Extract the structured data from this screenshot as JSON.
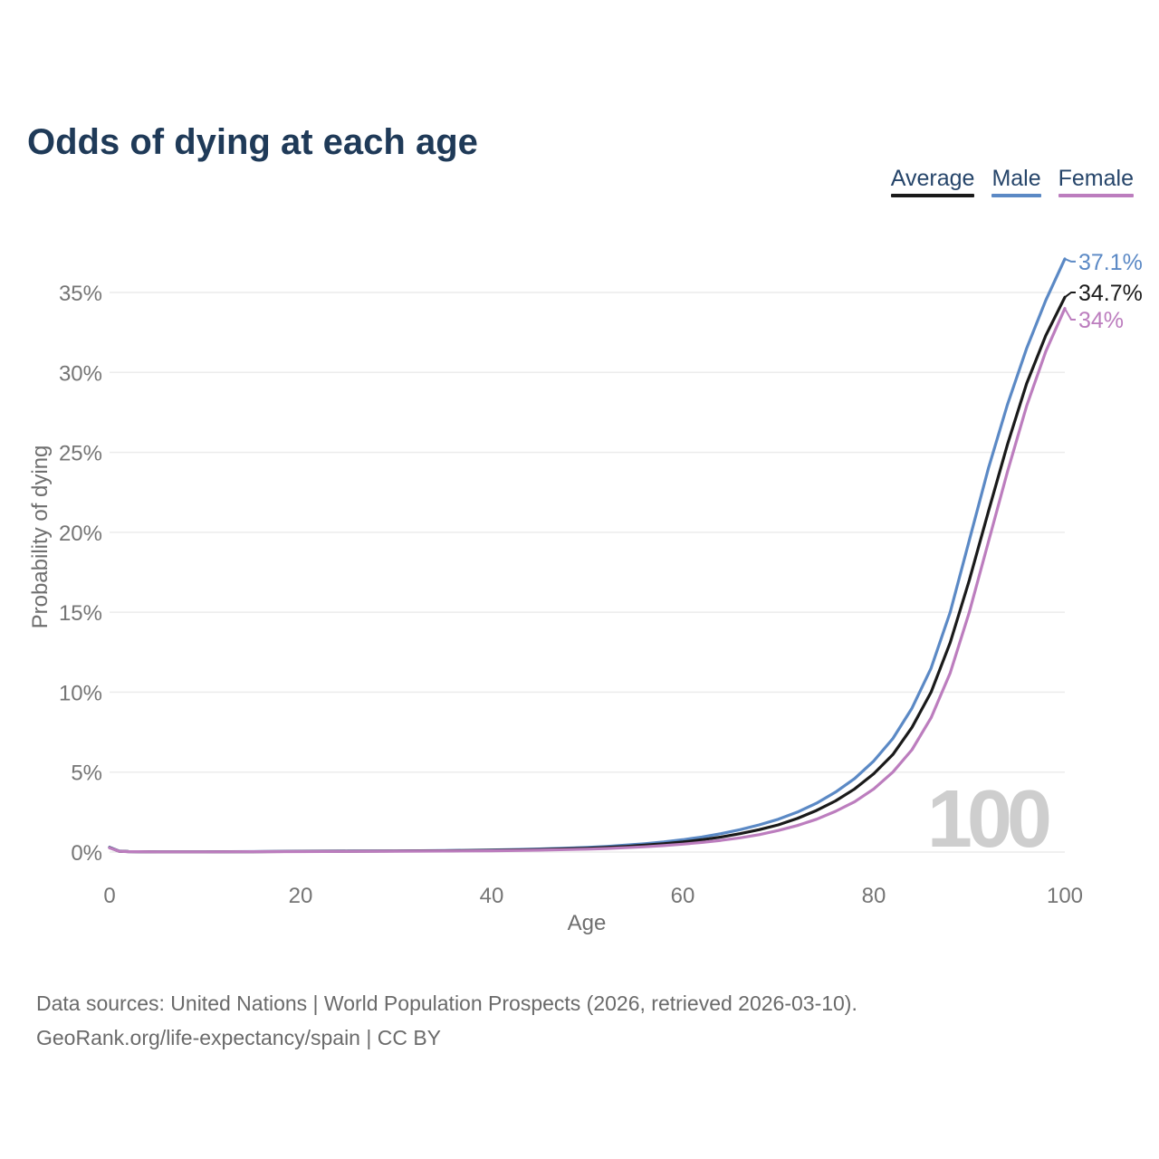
{
  "page": {
    "title": "Odds of dying at each age",
    "footer_line1": "Data sources: United Nations | World Population Prospects (2026, retrieved 2026-03-10).",
    "footer_line2": "GeoRank.org/life-expectancy/spain | CC BY"
  },
  "legend": {
    "items": [
      {
        "label": "Average",
        "color": "#1a1a1a"
      },
      {
        "label": "Male",
        "color": "#5b89c5"
      },
      {
        "label": "Female",
        "color": "#bc7dbe"
      }
    ]
  },
  "chart_data": {
    "type": "line",
    "title": "Odds of dying at each age",
    "xlabel": "Age",
    "ylabel": "Probability of dying",
    "xlim": [
      0,
      100
    ],
    "ylim": [
      0,
      35
    ],
    "grid": "horizontal",
    "legend_position": "top-right",
    "watermark": "100",
    "x_ticks": [
      {
        "v": 0,
        "label": "0"
      },
      {
        "v": 20,
        "label": "20"
      },
      {
        "v": 40,
        "label": "40"
      },
      {
        "v": 60,
        "label": "60"
      },
      {
        "v": 80,
        "label": "80"
      },
      {
        "v": 100,
        "label": "100"
      }
    ],
    "y_ticks": [
      {
        "v": 0,
        "label": "0%"
      },
      {
        "v": 5,
        "label": "5%"
      },
      {
        "v": 10,
        "label": "10%"
      },
      {
        "v": 15,
        "label": "15%"
      },
      {
        "v": 20,
        "label": "20%"
      },
      {
        "v": 25,
        "label": "25%"
      },
      {
        "v": 30,
        "label": "30%"
      },
      {
        "v": 35,
        "label": "35%"
      }
    ],
    "series": [
      {
        "name": "Male",
        "color": "#5b89c5",
        "end_label": "37.1%",
        "end_value": 37.1,
        "label_y_value": 36.93,
        "points": [
          [
            0,
            0.3
          ],
          [
            1,
            0.06
          ],
          [
            2,
            0.03
          ],
          [
            3,
            0.02
          ],
          [
            5,
            0.01
          ],
          [
            10,
            0.01
          ],
          [
            15,
            0.03
          ],
          [
            20,
            0.05
          ],
          [
            25,
            0.06
          ],
          [
            30,
            0.07
          ],
          [
            35,
            0.09
          ],
          [
            40,
            0.13
          ],
          [
            45,
            0.19
          ],
          [
            50,
            0.29
          ],
          [
            52,
            0.35
          ],
          [
            54,
            0.43
          ],
          [
            56,
            0.52
          ],
          [
            58,
            0.63
          ],
          [
            60,
            0.77
          ],
          [
            62,
            0.94
          ],
          [
            64,
            1.15
          ],
          [
            66,
            1.4
          ],
          [
            68,
            1.7
          ],
          [
            70,
            2.05
          ],
          [
            72,
            2.5
          ],
          [
            74,
            3.05
          ],
          [
            76,
            3.75
          ],
          [
            78,
            4.6
          ],
          [
            80,
            5.7
          ],
          [
            82,
            7.1
          ],
          [
            84,
            9.0
          ],
          [
            86,
            11.5
          ],
          [
            88,
            15.0
          ],
          [
            90,
            19.5
          ],
          [
            92,
            24.0
          ],
          [
            94,
            28.0
          ],
          [
            96,
            31.5
          ],
          [
            98,
            34.5
          ],
          [
            100,
            37.1
          ]
        ]
      },
      {
        "name": "Average",
        "color": "#1a1a1a",
        "end_label": "34.7%",
        "end_value": 34.7,
        "label_y_value": 35.0,
        "points": [
          [
            0,
            0.28
          ],
          [
            1,
            0.05
          ],
          [
            2,
            0.03
          ],
          [
            3,
            0.02
          ],
          [
            5,
            0.01
          ],
          [
            10,
            0.01
          ],
          [
            15,
            0.02
          ],
          [
            20,
            0.04
          ],
          [
            25,
            0.05
          ],
          [
            30,
            0.06
          ],
          [
            35,
            0.08
          ],
          [
            40,
            0.11
          ],
          [
            45,
            0.16
          ],
          [
            50,
            0.24
          ],
          [
            52,
            0.29
          ],
          [
            54,
            0.35
          ],
          [
            56,
            0.43
          ],
          [
            58,
            0.52
          ],
          [
            60,
            0.63
          ],
          [
            62,
            0.77
          ],
          [
            64,
            0.94
          ],
          [
            66,
            1.15
          ],
          [
            68,
            1.4
          ],
          [
            70,
            1.7
          ],
          [
            72,
            2.1
          ],
          [
            74,
            2.6
          ],
          [
            76,
            3.2
          ],
          [
            78,
            3.95
          ],
          [
            80,
            4.9
          ],
          [
            82,
            6.1
          ],
          [
            84,
            7.8
          ],
          [
            86,
            10.0
          ],
          [
            88,
            13.1
          ],
          [
            90,
            17.0
          ],
          [
            92,
            21.3
          ],
          [
            94,
            25.5
          ],
          [
            96,
            29.3
          ],
          [
            98,
            32.3
          ],
          [
            100,
            34.7
          ]
        ]
      },
      {
        "name": "Female",
        "color": "#bc7dbe",
        "end_label": "34%",
        "end_value": 34.0,
        "label_y_value": 33.3,
        "points": [
          [
            0,
            0.26
          ],
          [
            1,
            0.05
          ],
          [
            2,
            0.02
          ],
          [
            3,
            0.02
          ],
          [
            5,
            0.01
          ],
          [
            10,
            0.01
          ],
          [
            15,
            0.02
          ],
          [
            20,
            0.03
          ],
          [
            25,
            0.04
          ],
          [
            30,
            0.05
          ],
          [
            35,
            0.06
          ],
          [
            40,
            0.08
          ],
          [
            45,
            0.12
          ],
          [
            50,
            0.18
          ],
          [
            52,
            0.22
          ],
          [
            54,
            0.27
          ],
          [
            56,
            0.33
          ],
          [
            58,
            0.4
          ],
          [
            60,
            0.49
          ],
          [
            62,
            0.6
          ],
          [
            64,
            0.73
          ],
          [
            66,
            0.89
          ],
          [
            68,
            1.09
          ],
          [
            70,
            1.35
          ],
          [
            72,
            1.66
          ],
          [
            74,
            2.05
          ],
          [
            76,
            2.55
          ],
          [
            78,
            3.15
          ],
          [
            80,
            3.95
          ],
          [
            82,
            5.0
          ],
          [
            84,
            6.4
          ],
          [
            86,
            8.4
          ],
          [
            88,
            11.2
          ],
          [
            90,
            15.0
          ],
          [
            92,
            19.4
          ],
          [
            94,
            23.8
          ],
          [
            96,
            27.9
          ],
          [
            98,
            31.3
          ],
          [
            100,
            34.0
          ]
        ]
      }
    ]
  }
}
